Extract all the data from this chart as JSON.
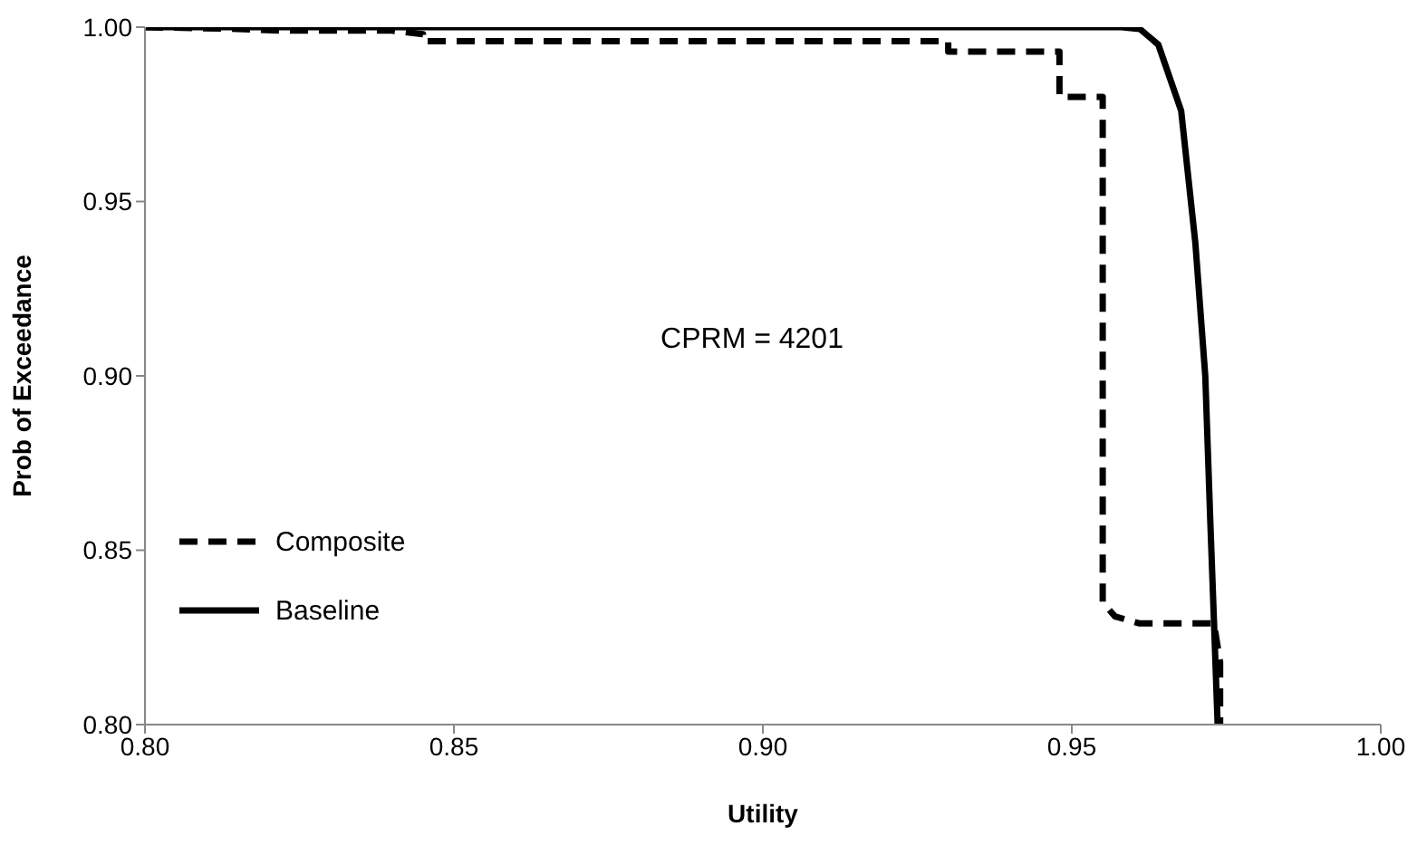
{
  "chart_data": {
    "type": "line",
    "xlabel": "Utility",
    "ylabel": "Prob of Exceedance",
    "xlim": [
      0.8,
      1.0
    ],
    "xticks": [
      {
        "value": 0.8,
        "label": "0.80"
      },
      {
        "value": 0.85,
        "label": "0.85"
      },
      {
        "value": 0.9,
        "label": "0.90"
      },
      {
        "value": 0.95,
        "label": "0.95"
      },
      {
        "value": 1.0,
        "label": "1.00"
      }
    ],
    "ylim": [
      0.8,
      1.0
    ],
    "yticks": [
      {
        "value": 0.8,
        "label": "0.80"
      },
      {
        "value": 0.85,
        "label": "0.85"
      },
      {
        "value": 0.9,
        "label": "0.90"
      },
      {
        "value": 0.95,
        "label": "0.95"
      },
      {
        "value": 1.0,
        "label": "1.00"
      }
    ],
    "grid": false,
    "legend": "bottom left",
    "annotations": [
      "CPRM = 4201"
    ],
    "series": [
      {
        "name": "Composite",
        "color": "#000000",
        "line_style": "dashed",
        "x": [
          0.8,
          0.815,
          0.822,
          0.84,
          0.845,
          0.845,
          0.93,
          0.93,
          0.948,
          0.948,
          0.955,
          0.955,
          0.957,
          0.961,
          0.973,
          0.974,
          0.974
        ],
        "values": [
          1.0,
          0.9995,
          0.999,
          0.999,
          0.998,
          0.996,
          0.996,
          0.993,
          0.993,
          0.98,
          0.98,
          0.835,
          0.831,
          0.829,
          0.829,
          0.818,
          0.8
        ]
      },
      {
        "name": "Baseline",
        "color": "#000000",
        "line_style": "solid",
        "x": [
          0.8,
          0.958,
          0.961,
          0.964,
          0.9677,
          0.97,
          0.9716,
          0.9724,
          0.973,
          0.9736
        ],
        "values": [
          1.0,
          1.0,
          0.9995,
          0.995,
          0.976,
          0.938,
          0.9,
          0.859,
          0.83,
          0.8
        ]
      }
    ]
  }
}
